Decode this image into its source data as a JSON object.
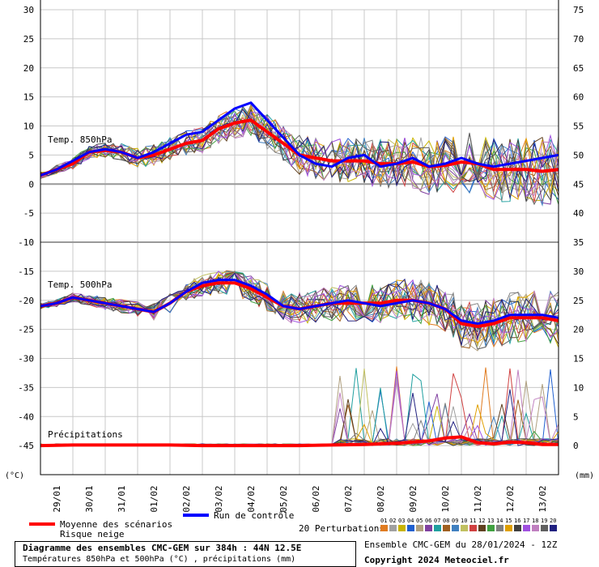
{
  "chart_data": {
    "type": "line",
    "title": "Diagramme des ensembles CMC-GEM sur 384h : 44N 12.5E",
    "subtitle": "Températures 850hPa et 500hPa (°C) , précipitations (mm)",
    "left_axis": {
      "unit": "(°C)",
      "ylim": [
        -50,
        30
      ],
      "ticks": [
        30,
        25,
        20,
        15,
        10,
        5,
        0,
        -5,
        -10,
        -15,
        -20,
        -25,
        -30,
        -35,
        -40,
        -45
      ]
    },
    "right_axis": {
      "unit": "(mm)",
      "ylim": [
        -5,
        75
      ],
      "ticks": [
        75,
        70,
        65,
        60,
        55,
        50,
        45,
        40,
        35,
        30,
        25,
        20,
        15,
        10,
        5,
        0
      ]
    },
    "x_range_days": [
      0,
      16
    ],
    "x_ticks": [
      "29/01",
      "30/01",
      "31/01",
      "01/02",
      "02/02",
      "03/02",
      "04/02",
      "05/02",
      "06/02",
      "07/02",
      "08/02",
      "09/02",
      "10/02",
      "11/02",
      "12/02",
      "13/02"
    ],
    "panel_labels": {
      "t850": "Temp. 850hPa",
      "t500": "Temp. 500hPa",
      "precip": "Précipitations"
    },
    "series": [
      {
        "name": "Moyenne des scénarios (850hPa)",
        "color": "#ff0000",
        "x": [
          0,
          0.5,
          1,
          1.5,
          2,
          2.5,
          3,
          3.5,
          4,
          4.5,
          5,
          5.5,
          6,
          6.5,
          7,
          7.5,
          8,
          8.5,
          9,
          9.5,
          10,
          10.5,
          11,
          11.5,
          12,
          12.5,
          13,
          13.5,
          14,
          14.5,
          15,
          15.5,
          16
        ],
        "values": [
          1.5,
          2.5,
          3.5,
          5.5,
          5.8,
          5.5,
          4.5,
          5.0,
          6.0,
          7.0,
          7.5,
          9.5,
          10.5,
          11.0,
          9.0,
          7.0,
          5.0,
          4.5,
          4.0,
          4.0,
          4.0,
          3.5,
          3.5,
          3.8,
          3.0,
          3.2,
          3.8,
          3.5,
          2.5,
          2.5,
          2.5,
          2.2,
          2.5
        ]
      },
      {
        "name": "Run de contrôle (850hPa)",
        "color": "#0000ff",
        "x": [
          0,
          0.5,
          1,
          1.5,
          2,
          2.5,
          3,
          3.5,
          4,
          4.5,
          5,
          5.5,
          6,
          6.5,
          7,
          7.5,
          8,
          8.5,
          9,
          9.5,
          10,
          10.5,
          11,
          11.5,
          12,
          12.5,
          13,
          13.5,
          14,
          14.5,
          15,
          15.5,
          16
        ],
        "values": [
          1.5,
          2.5,
          4.0,
          5.5,
          6.0,
          5.5,
          4.5,
          5.5,
          7.0,
          8.5,
          9.0,
          11.0,
          13.0,
          14.0,
          11.0,
          8.0,
          5.0,
          3.5,
          3.0,
          4.5,
          5.0,
          3.0,
          3.5,
          4.5,
          3.0,
          3.5,
          4.5,
          3.5,
          3.0,
          3.5,
          4.0,
          4.5,
          5.0
        ]
      },
      {
        "name": "Moyenne des scénarios (500hPa)",
        "color": "#ff0000",
        "x": [
          0,
          0.5,
          1,
          1.5,
          2,
          2.5,
          3,
          3.5,
          4,
          4.5,
          5,
          5.5,
          6,
          6.5,
          7,
          7.5,
          8,
          8.5,
          9,
          9.5,
          10,
          10.5,
          11,
          11.5,
          12,
          12.5,
          13,
          13.5,
          14,
          14.5,
          15,
          15.5,
          16
        ],
        "values": [
          -21,
          -20.5,
          -19.5,
          -20,
          -20.5,
          -21,
          -21.5,
          -22,
          -20.5,
          -18.5,
          -17.5,
          -17.0,
          -17.0,
          -18.0,
          -19.5,
          -21.0,
          -21.5,
          -21.0,
          -20.5,
          -20.5,
          -20.5,
          -20.5,
          -20.0,
          -20.0,
          -20.5,
          -21.5,
          -24.0,
          -24.5,
          -24.0,
          -23.0,
          -23.0,
          -23.0,
          -23.5
        ]
      },
      {
        "name": "Run de contrôle (500hPa)",
        "color": "#0000ff",
        "x": [
          0,
          0.5,
          1,
          1.5,
          2,
          2.5,
          3,
          3.5,
          4,
          4.5,
          5,
          5.5,
          6,
          6.5,
          7,
          7.5,
          8,
          8.5,
          9,
          9.5,
          10,
          10.5,
          11,
          11.5,
          12,
          12.5,
          13,
          13.5,
          14,
          14.5,
          15,
          15.5,
          16
        ],
        "values": [
          -21,
          -20.5,
          -19.5,
          -20,
          -20.5,
          -21,
          -21.5,
          -22,
          -20.5,
          -18.5,
          -17.0,
          -16.5,
          -16.5,
          -17.5,
          -19.0,
          -21.0,
          -21.5,
          -21.0,
          -20.5,
          -20.0,
          -20.5,
          -21.0,
          -20.5,
          -20.0,
          -20.5,
          -21.5,
          -23.5,
          -24.0,
          -23.5,
          -22.5,
          -22.5,
          -22.5,
          -23.0
        ]
      },
      {
        "name": "Moyenne des scénarios (précipitations, mm)",
        "color": "#ff0000",
        "x": [
          0,
          1,
          2,
          3,
          4,
          5,
          6,
          7,
          8,
          9,
          10,
          10.5,
          11,
          11.5,
          12,
          12.5,
          13,
          13.5,
          14,
          14.5,
          15,
          15.5,
          16
        ],
        "values": [
          0,
          0.1,
          0.1,
          0.1,
          0.1,
          0,
          0,
          0,
          0,
          0.1,
          0.2,
          0.3,
          0.4,
          0.6,
          0.8,
          1.3,
          1.5,
          0.5,
          0.3,
          0.6,
          0.5,
          0.2,
          0.2
        ]
      }
    ],
    "perturbations": {
      "count": 20,
      "colors": [
        "#e07b20",
        "#a0a0a0",
        "#c8b400",
        "#2060d0",
        "#b0a080",
        "#8040a0",
        "#20a0a0",
        "#a06020",
        "#4080c0",
        "#c0c060",
        "#d04040",
        "#604020",
        "#40a040",
        "#808080",
        "#e0a000",
        "#404040",
        "#a050e0",
        "#c080c0",
        "#606060",
        "#202080"
      ]
    },
    "legend": {
      "mean": "Moyenne des scénarios",
      "risk": "Risque neige",
      "control": "Run de contrôle",
      "perturbations": "20 Perturbations"
    }
  },
  "footer": {
    "title": "Diagramme des ensembles CMC-GEM sur 384h : 44N 12.5E",
    "subtitle": "Températures 850hPa et 500hPa (°C) , précipitations (mm)",
    "ensemble_info": "Ensemble CMC-GEM du 28/01/2024 - 12Z",
    "copyright": "Copyright 2024 Meteociel.fr"
  },
  "colors": {
    "mean": "#ff0000",
    "control": "#0000ff",
    "grid": "#c8c8c8",
    "separator": "#999999"
  }
}
